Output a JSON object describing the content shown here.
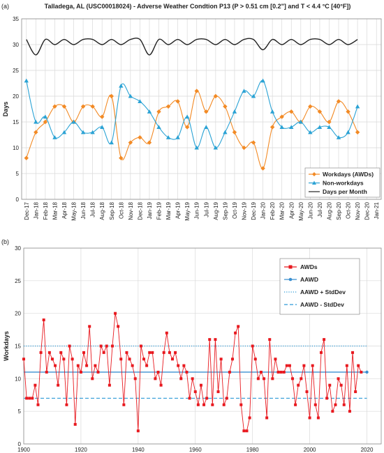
{
  "chart_data": [
    {
      "id": "a",
      "panel_label": "(a)",
      "type": "line",
      "title": "Talladega, AL (USC00018024) - Adverse Weather Condtion P13 (P > 0.51 cm [0.2\"] and T < 4.4 °C [40°F])",
      "ylabel": "Days",
      "xlabel": "",
      "ylim": [
        0,
        35
      ],
      "yticks": [
        0,
        5,
        10,
        15,
        20,
        25,
        30,
        35
      ],
      "grid": true,
      "legend_position": "bottom-right",
      "x_tick_labels": [
        "Dec-17",
        "Jan-18",
        "Feb-18",
        "Mar-18",
        "Apr-18",
        "May-18",
        "Jun-18",
        "Jul-18",
        "Aug-18",
        "Sep-18",
        "Oct-18",
        "Nov-18",
        "Dec-18",
        "Jan-19",
        "Feb-19",
        "Mar-19",
        "Apr-19",
        "May-19",
        "Jun-19",
        "Jul-19",
        "Aug-19",
        "Sep-19",
        "Oct-19",
        "Nov-19",
        "Dec-19",
        "Jan-20",
        "Feb-20",
        "Mar-20",
        "Apr-20",
        "May-20",
        "Jun-20",
        "Jul-20",
        "Aug-20",
        "Sep-20",
        "Oct-20",
        "Nov-20",
        "Dec-20",
        "Jan-21"
      ],
      "series": [
        {
          "name": "Workdays (AWDs)",
          "color": "#f28a25",
          "marker": "diamond",
          "values": [
            8,
            13,
            15,
            18,
            18,
            15,
            18,
            18,
            16,
            20,
            8,
            11,
            12,
            11,
            17,
            18,
            19,
            14,
            21,
            17,
            20,
            18,
            13,
            10,
            11,
            6,
            14,
            16,
            17,
            15,
            18,
            17,
            15,
            19,
            17,
            13
          ]
        },
        {
          "name": "Non-workdays",
          "color": "#2aa2d4",
          "marker": "triangle",
          "values": [
            23,
            15,
            16,
            12,
            13,
            15,
            13,
            13,
            14,
            11,
            22,
            20,
            19,
            17,
            14,
            12,
            12,
            16,
            10,
            14,
            10,
            13,
            17,
            21,
            20,
            23,
            17,
            14,
            14,
            15,
            13,
            14,
            14,
            12,
            13,
            18
          ]
        },
        {
          "name": "Days per Month",
          "color": "#222222",
          "marker": "none",
          "values": [
            31,
            28,
            31,
            30,
            31,
            30,
            31,
            31,
            30,
            31,
            30,
            31,
            31,
            28,
            31,
            30,
            31,
            30,
            31,
            31,
            30,
            31,
            30,
            31,
            31,
            29,
            31,
            30,
            31,
            30,
            31,
            31,
            30,
            31,
            30,
            31
          ]
        }
      ]
    },
    {
      "id": "b",
      "panel_label": "(b)",
      "type": "line",
      "title": "",
      "ylabel": "Workdays",
      "xlabel": "",
      "xlim": [
        1900,
        2025
      ],
      "xticks": [
        1900,
        1920,
        1940,
        1960,
        1980,
        2000,
        2020
      ],
      "ylim": [
        0,
        30
      ],
      "yticks": [
        0,
        5,
        10,
        15,
        20,
        25,
        30
      ],
      "grid": true,
      "legend_position": "top-right",
      "series": [
        {
          "name": "AWDs",
          "color": "#e8191f",
          "marker": "square",
          "x_start": 1900,
          "values": [
            13,
            7,
            7,
            7,
            9,
            6,
            14,
            19,
            11,
            14,
            13,
            12,
            9,
            14,
            13,
            6,
            15,
            13,
            3,
            12,
            11,
            14,
            12,
            18,
            10,
            12,
            11,
            15,
            14,
            15,
            9,
            15,
            20,
            18,
            13,
            6,
            14,
            13,
            12,
            10,
            2,
            15,
            13,
            12,
            14,
            14,
            10,
            11,
            9,
            14,
            17,
            14,
            13,
            14,
            12,
            10,
            12,
            11,
            7,
            10,
            8,
            6,
            9,
            6,
            7,
            16,
            6,
            16,
            8,
            13,
            6,
            7,
            11,
            13,
            17,
            18,
            6,
            2,
            2,
            4,
            15,
            13,
            10,
            11,
            10,
            4,
            16,
            10,
            13,
            11,
            11,
            11,
            12,
            12,
            10,
            6,
            9,
            10,
            12,
            8,
            4,
            12,
            6,
            4,
            14,
            16,
            7,
            9,
            5,
            6,
            10,
            9,
            6,
            12,
            5,
            14,
            8,
            12,
            11
          ]
        },
        {
          "name": "AAWD",
          "color": "#3a8fd0",
          "marker": "dot",
          "value": 11
        },
        {
          "name": "AAWD + StdDev",
          "color": "#2e9bd6",
          "style": "dotted",
          "value": 15
        },
        {
          "name": "AAWD - StdDev",
          "color": "#2e9bd6",
          "style": "dashed",
          "value": 7
        }
      ]
    }
  ]
}
